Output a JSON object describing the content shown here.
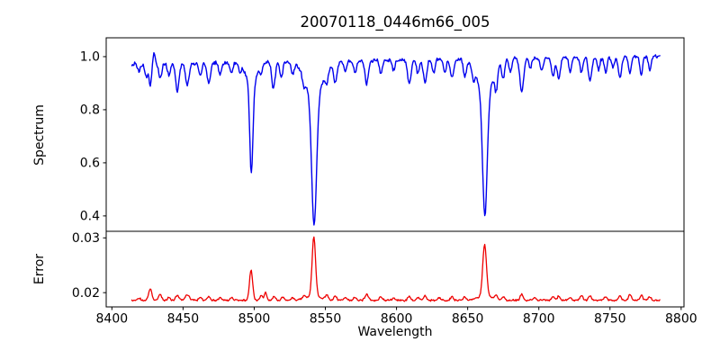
{
  "figure": {
    "title": "20070118_0446m66_005",
    "xlabel": "Wavelength"
  },
  "chart_data": {
    "type": "line",
    "title": "20070118_0446m66_005",
    "xlabel": "Wavelength",
    "xlim": [
      8396,
      8802
    ],
    "xticks": {
      "values": [
        8400,
        8450,
        8500,
        8550,
        8600,
        8650,
        8700,
        8750,
        8800
      ],
      "labels": [
        "8400",
        "8450",
        "8500",
        "8550",
        "8600",
        "8650",
        "8700",
        "8750",
        "8800"
      ]
    },
    "x_data_range": [
      8414,
      8785
    ],
    "x_step": 0.5,
    "grid": false,
    "legend": "none",
    "panels": [
      {
        "name": "spectrum",
        "ylabel": "Spectrum",
        "ylim": [
          0.342,
          1.071
        ],
        "yticks": {
          "values": [
            0.4,
            0.6,
            0.8,
            1.0
          ],
          "labels": [
            "0.4",
            "0.6",
            "0.8",
            "1.0"
          ]
        },
        "line_color": "#0000ee",
        "model": {
          "kind": "continuum_minus_gaussians",
          "continuum_start": 0.972,
          "continuum_end": 1.002,
          "noise_amplitude": 0.009,
          "seed": 42,
          "lines_center_depth_sigma": [
            [
              8419,
              0.03,
              1.0
            ],
            [
              8424,
              0.05,
              1.0
            ],
            [
              8427,
              0.08,
              1.0
            ],
            [
              8429.5,
              -0.045,
              0.8
            ],
            [
              8434,
              0.06,
              1.0
            ],
            [
              8440,
              0.045,
              1.0
            ],
            [
              8446,
              0.11,
              1.2
            ],
            [
              8453,
              0.09,
              1.2
            ],
            [
              8462,
              0.05,
              1.0
            ],
            [
              8468,
              0.08,
              1.2
            ],
            [
              8476,
              0.05,
              1.0
            ],
            [
              8484,
              0.04,
              1.0
            ],
            [
              8490,
              0.03,
              0.8
            ],
            [
              8498.0,
              0.35,
              1.1
            ],
            [
              8498.0,
              0.08,
              4.0
            ],
            [
              8505,
              0.03,
              0.8
            ],
            [
              8513.5,
              0.1,
              1.2
            ],
            [
              8519,
              0.06,
              1.0
            ],
            [
              8527,
              0.04,
              1.0
            ],
            [
              8535,
              0.04,
              1.0
            ],
            [
              8542.1,
              0.5,
              1.7
            ],
            [
              8542.1,
              0.13,
              6.0
            ],
            [
              8551,
              0.05,
              1.0
            ],
            [
              8557,
              0.08,
              1.2
            ],
            [
              8564,
              0.04,
              1.0
            ],
            [
              8571,
              0.05,
              1.0
            ],
            [
              8579,
              0.09,
              1.2
            ],
            [
              8589,
              0.05,
              1.0
            ],
            [
              8598,
              0.04,
              1.0
            ],
            [
              8609,
              0.09,
              1.2
            ],
            [
              8615,
              0.05,
              1.0
            ],
            [
              8620,
              0.09,
              1.2
            ],
            [
              8626,
              0.05,
              1.0
            ],
            [
              8634,
              0.05,
              1.0
            ],
            [
              8639,
              0.07,
              1.2
            ],
            [
              8648,
              0.06,
              1.0
            ],
            [
              8654,
              0.04,
              0.9
            ],
            [
              8662.1,
              0.47,
              1.6
            ],
            [
              8662.1,
              0.13,
              5.5
            ],
            [
              8670,
              0.08,
              1.0
            ],
            [
              8675,
              0.07,
              1.0
            ],
            [
              8680,
              0.05,
              1.0
            ],
            [
              8688,
              0.13,
              1.3
            ],
            [
              8694,
              0.04,
              1.0
            ],
            [
              8702,
              0.05,
              1.0
            ],
            [
              8710,
              0.07,
              1.1
            ],
            [
              8714,
              0.08,
              1.1
            ],
            [
              8722,
              0.05,
              1.0
            ],
            [
              8730,
              0.06,
              1.0
            ],
            [
              8736,
              0.09,
              1.2
            ],
            [
              8742,
              0.05,
              1.0
            ],
            [
              8747,
              0.06,
              1.0
            ],
            [
              8752,
              0.04,
              1.0
            ],
            [
              8757,
              0.08,
              1.1
            ],
            [
              8764,
              0.06,
              1.0
            ],
            [
              8772,
              0.07,
              1.0
            ],
            [
              8778,
              0.05,
              1.0
            ]
          ]
        },
        "key_features": {
          "continuum_level": 0.98,
          "major_absorption_lines": [
            {
              "wavelength": 8498,
              "min_flux": 0.56
            },
            {
              "wavelength": 8542,
              "min_flux": 0.37
            },
            {
              "wavelength": 8662,
              "min_flux": 0.4
            }
          ]
        }
      },
      {
        "name": "error",
        "ylabel": "Error",
        "ylim": [
          0.0174,
          0.0312
        ],
        "yticks": {
          "values": [
            0.02,
            0.03
          ],
          "labels": [
            "0.02",
            "0.03"
          ]
        },
        "line_color": "#ee0000",
        "model": {
          "kind": "baseline_plus_gaussians",
          "baseline_start": 0.0186,
          "baseline_end": 0.0186,
          "noise_amplitude": 0.0002,
          "seed": 1337,
          "lines_center_depth_sigma": [
            [
              8419,
              -0.0004,
              1.0
            ],
            [
              8427,
              -0.0021,
              1.1
            ],
            [
              8434,
              -0.0011,
              1.0
            ],
            [
              8440,
              -0.0005,
              1.0
            ],
            [
              8446,
              -0.0009,
              1.2
            ],
            [
              8453,
              -0.0011,
              1.3
            ],
            [
              8462,
              -0.0006,
              1.0
            ],
            [
              8468,
              -0.0007,
              1.0
            ],
            [
              8476,
              -0.0005,
              1.0
            ],
            [
              8484,
              -0.0005,
              1.0
            ],
            [
              8497.8,
              -0.0056,
              1.1
            ],
            [
              8505,
              -0.0009,
              0.9
            ],
            [
              8508,
              -0.0014,
              0.9
            ],
            [
              8514,
              -0.0007,
              1.0
            ],
            [
              8520,
              -0.0006,
              1.0
            ],
            [
              8527,
              -0.0005,
              1.0
            ],
            [
              8535,
              -0.0006,
              1.0
            ],
            [
              8541.9,
              -0.0108,
              1.2
            ],
            [
              8541.9,
              -0.0008,
              5.0
            ],
            [
              8551,
              -0.0008,
              1.0
            ],
            [
              8557,
              -0.0008,
              1.0
            ],
            [
              8564,
              -0.0005,
              1.0
            ],
            [
              8571,
              -0.0006,
              1.0
            ],
            [
              8579,
              -0.0011,
              1.2
            ],
            [
              8589,
              -0.0006,
              1.0
            ],
            [
              8598,
              -0.0005,
              1.0
            ],
            [
              8609,
              -0.0007,
              1.0
            ],
            [
              8615,
              -0.0005,
              1.0
            ],
            [
              8620,
              -0.0008,
              1.0
            ],
            [
              8630,
              -0.0005,
              1.0
            ],
            [
              8639,
              -0.0007,
              1.0
            ],
            [
              8648,
              -0.0006,
              1.0
            ],
            [
              8661.9,
              -0.0095,
              1.3
            ],
            [
              8661.9,
              -0.0008,
              5.0
            ],
            [
              8670,
              -0.0007,
              1.0
            ],
            [
              8675,
              -0.0006,
              1.0
            ],
            [
              8688,
              -0.0011,
              1.1
            ],
            [
              8697,
              -0.0005,
              1.0
            ],
            [
              8710,
              -0.0007,
              1.0
            ],
            [
              8714,
              -0.0008,
              1.0
            ],
            [
              8722,
              -0.0005,
              1.0
            ],
            [
              8730,
              -0.0009,
              1.0
            ],
            [
              8736,
              -0.0008,
              1.0
            ],
            [
              8747,
              -0.0007,
              1.0
            ],
            [
              8757,
              -0.0008,
              1.0
            ],
            [
              8764,
              -0.0012,
              1.0
            ],
            [
              8772,
              -0.001,
              1.0
            ],
            [
              8778,
              -0.0006,
              1.0
            ]
          ]
        },
        "key_features": {
          "baseline_level": 0.0186,
          "major_peaks": [
            {
              "wavelength": 8498,
              "max_error": 0.0243
            },
            {
              "wavelength": 8542,
              "max_error": 0.0303
            },
            {
              "wavelength": 8662,
              "max_error": 0.0288
            }
          ]
        }
      }
    ]
  },
  "colors": {
    "spectrum_line": "#0000ee",
    "error_line": "#ee0000",
    "axis": "#000000",
    "background": "#ffffff"
  }
}
